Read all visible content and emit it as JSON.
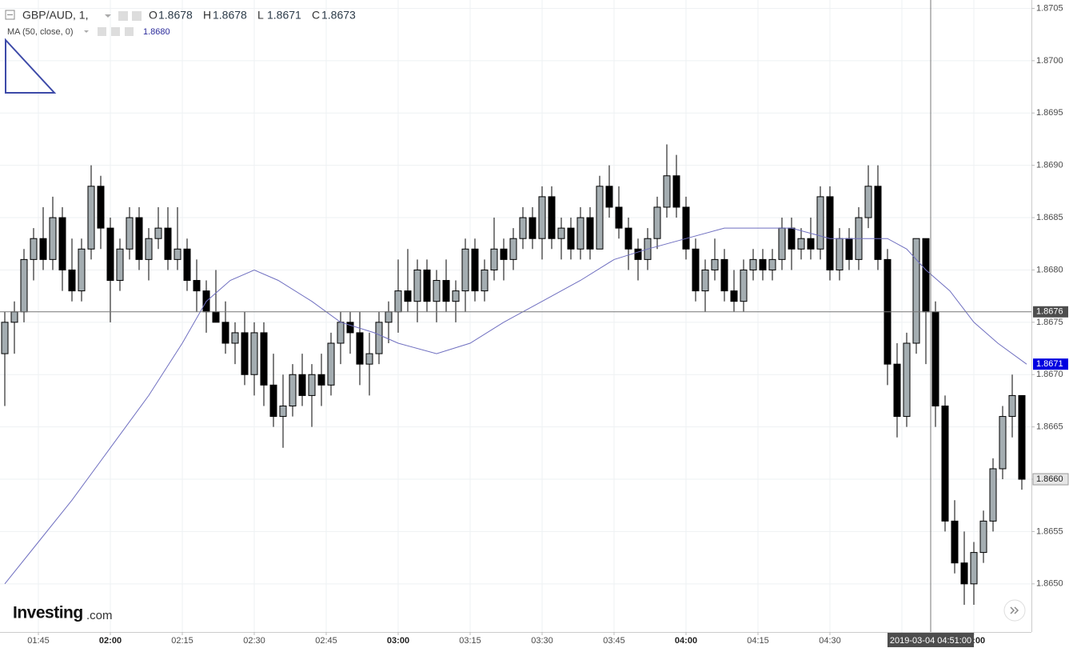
{
  "chart_data": {
    "type": "candlestick",
    "header": {
      "symbol": "GBP/AUD, 1,",
      "quote": [
        {
          "label": "O",
          "value": 1.8678
        },
        {
          "label": "H",
          "value": 1.8678
        },
        {
          "label": "L",
          "value": 1.8671
        },
        {
          "label": "C",
          "value": 1.8673
        }
      ]
    },
    "up_color": "#a4adb1",
    "down_color": "#000000",
    "x": [
      "01:38",
      "01:40",
      "01:42",
      "01:44",
      "01:46",
      "01:48",
      "01:50",
      "01:52",
      "01:54",
      "01:56",
      "01:58",
      "02:00",
      "02:02",
      "02:04",
      "02:06",
      "02:08",
      "02:10",
      "02:12",
      "02:14",
      "02:16",
      "02:18",
      "02:20",
      "02:22",
      "02:24",
      "02:26",
      "02:28",
      "02:30",
      "02:32",
      "02:34",
      "02:36",
      "02:38",
      "02:40",
      "02:42",
      "02:44",
      "02:46",
      "02:48",
      "02:50",
      "02:52",
      "02:54",
      "02:56",
      "02:58",
      "03:00",
      "03:02",
      "03:04",
      "03:06",
      "03:08",
      "03:10",
      "03:12",
      "03:14",
      "03:16",
      "03:18",
      "03:20",
      "03:22",
      "03:24",
      "03:26",
      "03:28",
      "03:30",
      "03:32",
      "03:34",
      "03:36",
      "03:38",
      "03:40",
      "03:42",
      "03:44",
      "03:46",
      "03:48",
      "03:50",
      "03:52",
      "03:54",
      "03:56",
      "03:58",
      "04:00",
      "04:02",
      "04:04",
      "04:06",
      "04:08",
      "04:10",
      "04:12",
      "04:14",
      "04:16",
      "04:18",
      "04:20",
      "04:22",
      "04:24",
      "04:26",
      "04:28",
      "04:30",
      "04:32",
      "04:34",
      "04:36",
      "04:38",
      "04:40",
      "04:42",
      "04:44",
      "04:46",
      "04:48",
      "04:50",
      "04:52",
      "04:54",
      "04:56",
      "04:58",
      "05:00",
      "05:02",
      "05:04",
      "05:06",
      "05:08",
      "05:10"
    ],
    "ohlc": [
      [
        1.8672,
        1.8676,
        1.8667,
        1.8675
      ],
      [
        1.8675,
        1.8677,
        1.8672,
        1.8676
      ],
      [
        1.8676,
        1.8682,
        1.8675,
        1.8681
      ],
      [
        1.8681,
        1.8684,
        1.8679,
        1.8683
      ],
      [
        1.8683,
        1.8686,
        1.868,
        1.8681
      ],
      [
        1.8681,
        1.8687,
        1.868,
        1.8685
      ],
      [
        1.8685,
        1.8686,
        1.8678,
        1.868
      ],
      [
        1.868,
        1.8683,
        1.8677,
        1.8678
      ],
      [
        1.8678,
        1.8683,
        1.8677,
        1.8682
      ],
      [
        1.8682,
        1.869,
        1.8681,
        1.8688
      ],
      [
        1.8688,
        1.8689,
        1.8682,
        1.8684
      ],
      [
        1.8684,
        1.8685,
        1.8675,
        1.8679
      ],
      [
        1.8679,
        1.8683,
        1.8678,
        1.8682
      ],
      [
        1.8682,
        1.8686,
        1.8681,
        1.8685
      ],
      [
        1.8685,
        1.8686,
        1.868,
        1.8681
      ],
      [
        1.8681,
        1.8684,
        1.8679,
        1.8683
      ],
      [
        1.8683,
        1.8686,
        1.8682,
        1.8684
      ],
      [
        1.8684,
        1.8686,
        1.868,
        1.8681
      ],
      [
        1.8681,
        1.8686,
        1.868,
        1.8682
      ],
      [
        1.8682,
        1.8683,
        1.8678,
        1.8679
      ],
      [
        1.8679,
        1.8681,
        1.8676,
        1.8678
      ],
      [
        1.8678,
        1.8679,
        1.8674,
        1.8676
      ],
      [
        1.8676,
        1.868,
        1.8675,
        1.8675
      ],
      [
        1.8675,
        1.8677,
        1.8672,
        1.8673
      ],
      [
        1.8673,
        1.8675,
        1.8671,
        1.8674
      ],
      [
        1.8674,
        1.8676,
        1.8669,
        1.867
      ],
      [
        1.867,
        1.8675,
        1.8668,
        1.8674
      ],
      [
        1.8674,
        1.8675,
        1.8667,
        1.8669
      ],
      [
        1.8669,
        1.8672,
        1.8665,
        1.8666
      ],
      [
        1.8666,
        1.867,
        1.8663,
        1.8667
      ],
      [
        1.8667,
        1.8671,
        1.8666,
        1.867
      ],
      [
        1.867,
        1.8672,
        1.8667,
        1.8668
      ],
      [
        1.8668,
        1.8671,
        1.8665,
        1.867
      ],
      [
        1.867,
        1.8672,
        1.8667,
        1.8669
      ],
      [
        1.8669,
        1.8674,
        1.8668,
        1.8673
      ],
      [
        1.8673,
        1.8676,
        1.8671,
        1.8675
      ],
      [
        1.8675,
        1.8676,
        1.8672,
        1.8674
      ],
      [
        1.8674,
        1.8676,
        1.8669,
        1.8671
      ],
      [
        1.8671,
        1.8674,
        1.8668,
        1.8672
      ],
      [
        1.8672,
        1.8676,
        1.8671,
        1.8675
      ],
      [
        1.8675,
        1.8677,
        1.8673,
        1.8676
      ],
      [
        1.8676,
        1.8681,
        1.8674,
        1.8678
      ],
      [
        1.8678,
        1.8682,
        1.8676,
        1.8677
      ],
      [
        1.8677,
        1.8681,
        1.8675,
        1.868
      ],
      [
        1.868,
        1.8681,
        1.8676,
        1.8677
      ],
      [
        1.8677,
        1.868,
        1.8675,
        1.8679
      ],
      [
        1.8679,
        1.8681,
        1.8676,
        1.8677
      ],
      [
        1.8677,
        1.8679,
        1.8675,
        1.8678
      ],
      [
        1.8678,
        1.8683,
        1.8676,
        1.8682
      ],
      [
        1.8682,
        1.8683,
        1.8677,
        1.8678
      ],
      [
        1.8678,
        1.8681,
        1.8677,
        1.868
      ],
      [
        1.868,
        1.8685,
        1.8679,
        1.8682
      ],
      [
        1.8682,
        1.8683,
        1.8679,
        1.8681
      ],
      [
        1.8681,
        1.8684,
        1.868,
        1.8683
      ],
      [
        1.8683,
        1.8686,
        1.8682,
        1.8685
      ],
      [
        1.8685,
        1.8686,
        1.8682,
        1.8683
      ],
      [
        1.8683,
        1.8688,
        1.8681,
        1.8687
      ],
      [
        1.8687,
        1.8688,
        1.8682,
        1.8683
      ],
      [
        1.8683,
        1.8685,
        1.8681,
        1.8684
      ],
      [
        1.8684,
        1.8685,
        1.8681,
        1.8682
      ],
      [
        1.8682,
        1.8686,
        1.8681,
        1.8685
      ],
      [
        1.8685,
        1.8686,
        1.8681,
        1.8682
      ],
      [
        1.8682,
        1.8689,
        1.8682,
        1.8688
      ],
      [
        1.8688,
        1.869,
        1.8685,
        1.8686
      ],
      [
        1.8686,
        1.8688,
        1.8683,
        1.8684
      ],
      [
        1.8684,
        1.8685,
        1.868,
        1.8682
      ],
      [
        1.8682,
        1.8683,
        1.8679,
        1.8681
      ],
      [
        1.8681,
        1.8684,
        1.868,
        1.8683
      ],
      [
        1.8683,
        1.8687,
        1.8682,
        1.8686
      ],
      [
        1.8686,
        1.8692,
        1.8685,
        1.8689
      ],
      [
        1.8689,
        1.8691,
        1.8685,
        1.8686
      ],
      [
        1.8686,
        1.8687,
        1.8681,
        1.8682
      ],
      [
        1.8682,
        1.8683,
        1.8677,
        1.8678
      ],
      [
        1.8678,
        1.8681,
        1.8676,
        1.868
      ],
      [
        1.868,
        1.8683,
        1.8679,
        1.8681
      ],
      [
        1.8681,
        1.8682,
        1.8677,
        1.8678
      ],
      [
        1.8678,
        1.868,
        1.8676,
        1.8677
      ],
      [
        1.8677,
        1.8681,
        1.8676,
        1.868
      ],
      [
        1.868,
        1.8682,
        1.8679,
        1.8681
      ],
      [
        1.8681,
        1.8682,
        1.8679,
        1.868
      ],
      [
        1.868,
        1.8682,
        1.8679,
        1.8681
      ],
      [
        1.8681,
        1.8685,
        1.868,
        1.8684
      ],
      [
        1.8684,
        1.8685,
        1.868,
        1.8682
      ],
      [
        1.8682,
        1.8684,
        1.8681,
        1.8683
      ],
      [
        1.8683,
        1.8685,
        1.8681,
        1.8682
      ],
      [
        1.8682,
        1.8688,
        1.8681,
        1.8687
      ],
      [
        1.8687,
        1.8688,
        1.8679,
        1.868
      ],
      [
        1.868,
        1.8684,
        1.8679,
        1.8683
      ],
      [
        1.8683,
        1.8684,
        1.868,
        1.8681
      ],
      [
        1.8681,
        1.8686,
        1.868,
        1.8685
      ],
      [
        1.8685,
        1.869,
        1.8684,
        1.8688
      ],
      [
        1.8688,
        1.869,
        1.868,
        1.8681
      ],
      [
        1.8681,
        1.8682,
        1.8669,
        1.8671
      ],
      [
        1.8671,
        1.8673,
        1.8664,
        1.8666
      ],
      [
        1.8666,
        1.8674,
        1.8665,
        1.8673
      ],
      [
        1.8673,
        1.8683,
        1.8672,
        1.8683
      ],
      [
        1.8683,
        1.8683,
        1.8671,
        1.8676
      ],
      [
        1.8676,
        1.8677,
        1.8665,
        1.8667
      ],
      [
        1.8667,
        1.8668,
        1.8655,
        1.8656
      ],
      [
        1.8656,
        1.8658,
        1.8651,
        1.8652
      ],
      [
        1.8652,
        1.8655,
        1.8648,
        1.865
      ],
      [
        1.865,
        1.8654,
        1.8648,
        1.8653
      ],
      [
        1.8653,
        1.8657,
        1.8652,
        1.8656
      ],
      [
        1.8656,
        1.8662,
        1.8655,
        1.8661
      ],
      [
        1.8661,
        1.8667,
        1.866,
        1.8666
      ],
      [
        1.8666,
        1.867,
        1.8664,
        1.8668
      ],
      [
        1.8668,
        1.8668,
        1.8659,
        1.866
      ]
    ],
    "ma": {
      "name": "MA (50, close, 0)",
      "value": {
        "value": 1.868,
        "label": "1.8680"
      },
      "color": "#6f6fc0",
      "x": [
        "01:38",
        "01:45",
        "01:52",
        "02:00",
        "02:08",
        "02:15",
        "02:20",
        "02:25",
        "02:30",
        "02:35",
        "02:42",
        "02:48",
        "02:55",
        "03:00",
        "03:08",
        "03:15",
        "03:22",
        "03:30",
        "03:38",
        "03:45",
        "03:52",
        "04:00",
        "04:08",
        "04:15",
        "04:22",
        "04:30",
        "04:38",
        "04:42",
        "04:46",
        "04:50",
        "04:55",
        "05:00",
        "05:05",
        "05:11"
      ],
      "values": [
        1.865,
        1.8654,
        1.8658,
        1.8663,
        1.8668,
        1.8673,
        1.8677,
        1.8679,
        1.868,
        1.8679,
        1.8677,
        1.8675,
        1.8674,
        1.8673,
        1.8672,
        1.8673,
        1.8675,
        1.8677,
        1.8679,
        1.8681,
        1.8682,
        1.8683,
        1.8684,
        1.8684,
        1.8684,
        1.8683,
        1.8683,
        1.8683,
        1.8682,
        1.868,
        1.8678,
        1.8675,
        1.8673,
        1.8671
      ],
      "tag": 1.8671
    },
    "last_price": {
      "value": 1.866,
      "label": "1.8660"
    },
    "crosshair": {
      "x": "04:51",
      "label": "2019-03-04 04:51:00",
      "y": 1.8676
    },
    "xlim": [
      "01:37",
      "05:12"
    ],
    "xticks": [
      "01:45",
      "02:00",
      "02:15",
      "02:30",
      "02:45",
      "03:00",
      "03:15",
      "03:30",
      "03:45",
      "04:00",
      "04:15",
      "04:30",
      "04:45",
      "05:00"
    ],
    "ylim": [
      1.86454,
      1.87058
    ],
    "yticks": [
      {
        "value": 1.865,
        "label": "1.8650"
      },
      {
        "value": 1.8655,
        "label": "1.8655"
      },
      {
        "value": 1.866,
        "label": "1.8660"
      },
      {
        "value": 1.8665,
        "label": "1.8665"
      },
      {
        "value": 1.867,
        "label": "1.8670"
      },
      {
        "value": 1.8675,
        "label": "1.8675"
      },
      {
        "value": 1.868,
        "label": "1.8680"
      },
      {
        "value": 1.8685,
        "label": "1.8685"
      },
      {
        "value": 1.869,
        "label": "1.8690"
      },
      {
        "value": 1.8695,
        "label": "1.8695"
      },
      {
        "value": 1.87,
        "label": "1.8700"
      },
      {
        "value": 1.8705,
        "label": "1.8705"
      }
    ],
    "grid": true,
    "logo": {
      "brand": "Investing",
      "suffix": ".com"
    }
  }
}
